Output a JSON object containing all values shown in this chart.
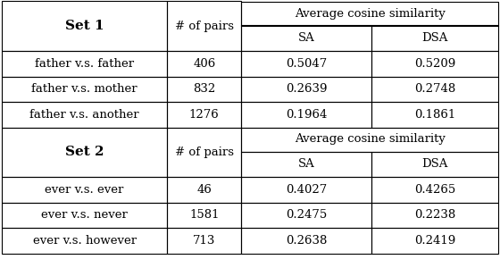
{
  "set1_label": "Set 1",
  "set2_label": "Set 2",
  "pairs_header": "# of pairs",
  "avg_cos_header": "Average cosine similarity",
  "sa_header": "SA",
  "dsa_header": "DSA",
  "set1_rows": [
    {
      "label": "father v.s. father",
      "pairs": "406",
      "sa": "0.5047",
      "dsa": "0.5209"
    },
    {
      "label": "father v.s. mother",
      "pairs": "832",
      "sa": "0.2639",
      "dsa": "0.2748"
    },
    {
      "label": "father v.s. another",
      "pairs": "1276",
      "sa": "0.1964",
      "dsa": "0.1861"
    }
  ],
  "set2_rows": [
    {
      "label": "ever v.s. ever",
      "pairs": "46",
      "sa": "0.4027",
      "dsa": "0.4265"
    },
    {
      "label": "ever v.s. never",
      "pairs": "1581",
      "sa": "0.2475",
      "dsa": "0.2238"
    },
    {
      "label": "ever v.s. however",
      "pairs": "713",
      "sa": "0.2638",
      "dsa": "0.2419"
    }
  ],
  "bg_color": "#ffffff",
  "line_color": "#000000",
  "text_color": "#000000",
  "header_fontsize": 9.5,
  "cell_fontsize": 9.5,
  "bold_header_fontsize": 11,
  "col_bounds": [
    0.004,
    0.334,
    0.483,
    0.743,
    0.996
  ],
  "row_tops": [
    0.995,
    0.905,
    0.81,
    0.715,
    0.62,
    0.525,
    0.435,
    0.34,
    0.245,
    0.15,
    0.055
  ]
}
